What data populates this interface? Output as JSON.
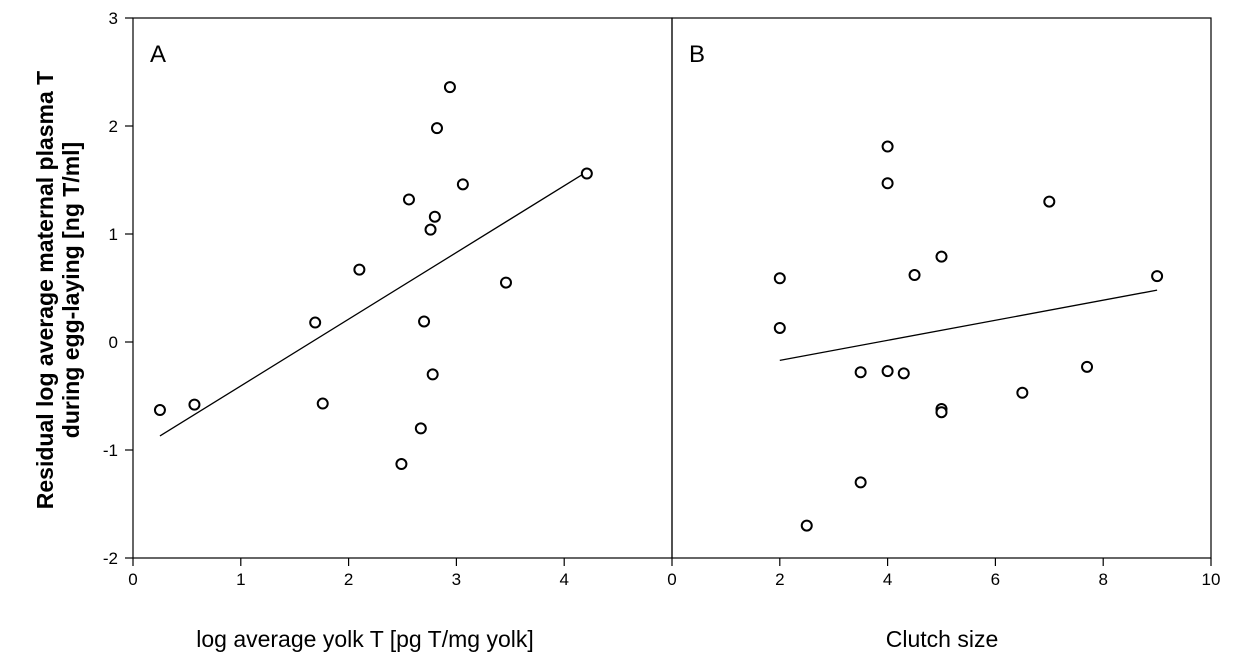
{
  "chart_data": [
    {
      "type": "scatter",
      "panel_label": "A",
      "xlabel": "log average yolk T [pg T/mg yolk]",
      "ylabel_line1": "Residual log average maternal plasma T",
      "ylabel_line2": "during egg-laying [ng T/ml]",
      "xlim": [
        0,
        5
      ],
      "ylim": [
        -2,
        3
      ],
      "x_ticks": [
        0,
        1,
        2,
        3,
        4
      ],
      "y_ticks": [
        -2,
        -1,
        0,
        1,
        2,
        3
      ],
      "x": [
        0.25,
        0.57,
        1.69,
        1.76,
        2.1,
        2.49,
        2.56,
        2.67,
        2.7,
        2.76,
        2.78,
        2.8,
        2.82,
        2.94,
        3.06,
        3.46,
        4.21
      ],
      "y": [
        -0.63,
        -0.58,
        0.18,
        -0.57,
        0.67,
        -1.13,
        1.32,
        -0.8,
        0.19,
        1.04,
        -0.3,
        1.16,
        1.98,
        2.36,
        1.46,
        0.55,
        1.56
      ],
      "fit_line": {
        "x": [
          0.25,
          4.2
        ],
        "y": [
          -0.87,
          1.57
        ]
      }
    },
    {
      "type": "scatter",
      "panel_label": "B",
      "xlabel": "Clutch size",
      "xlim": [
        0,
        10
      ],
      "ylim": [
        -2,
        3
      ],
      "x_ticks": [
        0,
        2,
        4,
        6,
        8,
        10
      ],
      "x": [
        2,
        2,
        2.5,
        3.5,
        3.5,
        4,
        4,
        4,
        4.3,
        4.5,
        5,
        5,
        5,
        6.5,
        7,
        7.7,
        9
      ],
      "y": [
        0.59,
        0.13,
        -1.7,
        -1.3,
        -0.28,
        1.81,
        1.47,
        -0.27,
        -0.29,
        0.62,
        0.79,
        -0.62,
        -0.65,
        -0.47,
        1.3,
        -0.23,
        0.61
      ],
      "fit_line": {
        "x": [
          2,
          9
        ],
        "y": [
          -0.17,
          0.48
        ]
      }
    }
  ]
}
